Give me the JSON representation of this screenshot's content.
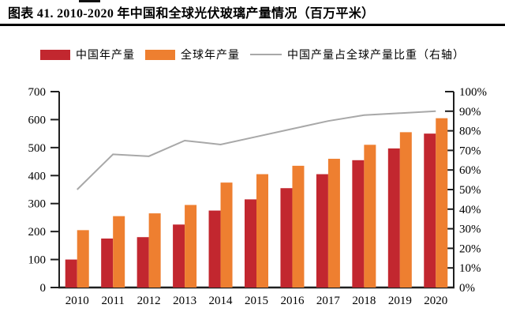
{
  "page": {
    "title": "图表 41. 2010-2020 年中国和全球光伏玻璃产量情况（百万平米）"
  },
  "legend": [
    {
      "label": "中国年产量",
      "color": "#c2272f",
      "type": "swatch"
    },
    {
      "label": "全球年产量",
      "color": "#ee7f30",
      "type": "swatch"
    },
    {
      "label": "中国产量占全球产量比重（右轴）",
      "color": "#a8a8a8",
      "type": "line"
    }
  ],
  "chart_data": {
    "type": "bar",
    "subtype": "grouped-bars-with-line-combo",
    "title": "2010-2020 年中国和全球光伏玻璃产量情况（百万平米）",
    "categories": [
      "2010",
      "2011",
      "2012",
      "2013",
      "2014",
      "2015",
      "2016",
      "2017",
      "2018",
      "2019",
      "2020"
    ],
    "series": [
      {
        "name": "中国年产量",
        "type": "bar",
        "axis": "left",
        "color": "#c2272f",
        "values": [
          100,
          175,
          180,
          225,
          275,
          315,
          355,
          405,
          455,
          497,
          550
        ]
      },
      {
        "name": "全球年产量",
        "type": "bar",
        "axis": "left",
        "color": "#ee7f30",
        "values": [
          205,
          255,
          265,
          295,
          375,
          405,
          435,
          460,
          510,
          555,
          605
        ]
      },
      {
        "name": "中国产量占全球产量比重（右轴）",
        "type": "line",
        "axis": "right",
        "color": "#a8a8a8",
        "values": [
          50,
          68,
          67,
          75,
          73,
          77,
          81,
          85,
          88,
          89,
          90
        ],
        "unit": "%"
      }
    ],
    "left_axis": {
      "min": 0,
      "max": 700,
      "step": 100,
      "tick_labels": [
        "0",
        "100",
        "200",
        "300",
        "400",
        "500",
        "600",
        "700"
      ]
    },
    "right_axis": {
      "min": 0,
      "max": 100,
      "step": 10,
      "tick_labels": [
        "0%",
        "10%",
        "20%",
        "30%",
        "40%",
        "50%",
        "60%",
        "70%",
        "80%",
        "90%",
        "100%"
      ]
    },
    "xlabel": "",
    "ylabel": "",
    "grid": false,
    "legend_position": "top",
    "colors": {
      "axis": "#1f1f1f",
      "background": "#ffffff"
    }
  }
}
